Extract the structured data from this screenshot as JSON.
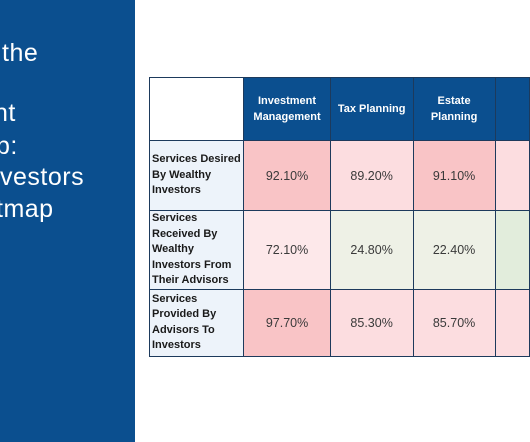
{
  "title_lines": [
    "the",
    "",
    "nt",
    "p:",
    "vestors",
    "tmap"
  ],
  "colors": {
    "panel": "#0b4f8f",
    "header": "#0b4f8f",
    "row_header_bg": "#edf3fa",
    "border": "#1d3a5c",
    "strong_red": "#f9c4c6",
    "mid_red": "#fcdde0",
    "light_red": "#fde8ea",
    "light_green": "#eef1e6",
    "green": "#e2eddc"
  },
  "chart_data": {
    "type": "heatmap",
    "columns": [
      "Investment Management",
      "Tax Planning",
      "Estate Planning",
      ""
    ],
    "rows": [
      {
        "label": "Services Desired By Wealthy Investors",
        "values": [
          "92.10%",
          "89.20%",
          "91.10%",
          ""
        ],
        "tones": [
          "strong_red",
          "mid_red",
          "strong_red",
          "mid_red"
        ]
      },
      {
        "label": "Services Received By Wealthy Investors From Their Advisors",
        "values": [
          "72.10%",
          "24.80%",
          "22.40%",
          ""
        ],
        "tones": [
          "light_red",
          "light_green",
          "light_green",
          "green"
        ]
      },
      {
        "label": "Services Provided By Advisors To Investors",
        "values": [
          "97.70%",
          "85.30%",
          "85.70%",
          ""
        ],
        "tones": [
          "strong_red",
          "mid_red",
          "mid_red",
          "mid_red"
        ]
      }
    ]
  }
}
